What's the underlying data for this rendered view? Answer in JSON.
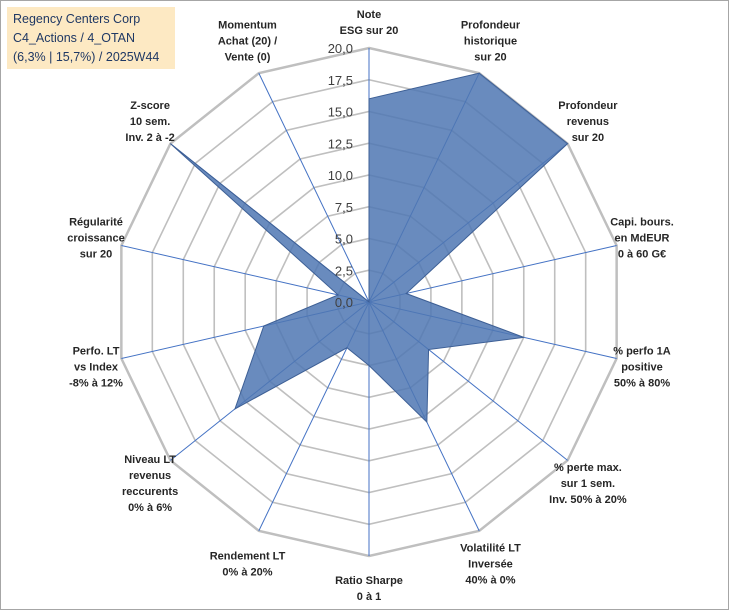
{
  "title_box": {
    "line1": "Regency Centers Corp",
    "line2": "C4_Actions / 4_OTAN",
    "line3": "(6,3% | 15,7%) / 2025W44"
  },
  "colors": {
    "fill": "#4f77b3",
    "grid": "#bfbfbf",
    "spoke": "#4472c4",
    "title_bg": "#fde9c3",
    "title_text": "#1f3864"
  },
  "chart_data": {
    "type": "radar",
    "rmin": 0,
    "rmax": 20,
    "tick_step": 2.5,
    "tick_labels": [
      "0,0",
      "2,5",
      "5,0",
      "7,5",
      "10,0",
      "12,5",
      "15,0",
      "17,5",
      "20,0"
    ],
    "axes": [
      "Note\nESG sur 20",
      "Profondeur\nhistorique\nsur 20",
      "Profondeur\nrevenus\nsur 20",
      "Capi. bours.\nen MdEUR\n0 à 60 G€",
      "% perfo 1A\npositive\n50% à 80%",
      "% perte max.\nsur 1 sem.\nInv. 50% à 20%",
      "Volatilité LT\nInversée\n40% à 0%",
      "Ratio Sharpe\n0 à 1",
      "Rendement LT\n0% à 20%",
      "Niveau LT\nrevenus\nreccurents\n0% à 6%",
      "Perfo. LT\nvs Index\n-8% à 12%",
      "Régularité\ncroissance\nsur 20",
      "Z-score\n10 sem.\nInv. 2 à -2",
      "Momentum\nAchat (20) /\nVente (0)"
    ],
    "series": [
      {
        "values": [
          16,
          20,
          20,
          3,
          12.5,
          6,
          10.5,
          5,
          4,
          13.5,
          8.5,
          2.5,
          20,
          0
        ]
      }
    ]
  }
}
